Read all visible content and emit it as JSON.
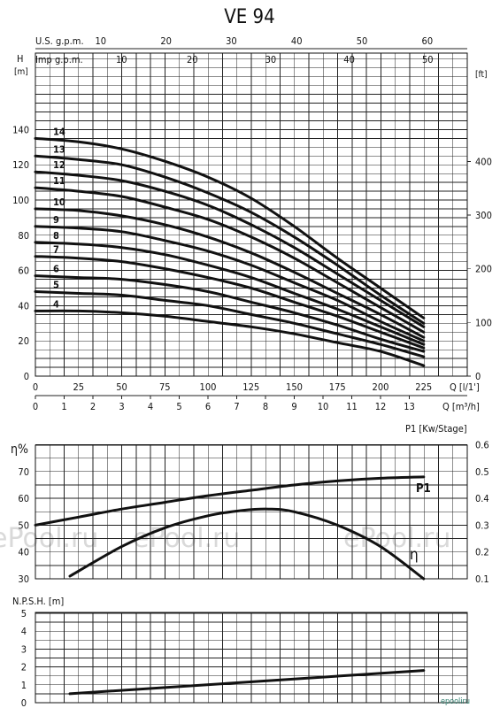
{
  "title": "VE 94",
  "watermark_text": "ePool.ru",
  "site_mark": "epooliru",
  "chart_data": [
    {
      "type": "line",
      "name": "head-curves",
      "ylabel": "H",
      "ylabel_unit": "[m]",
      "right_unit": "[ft]",
      "ylim": [
        0,
        145
      ],
      "xlim": [
        0,
        250
      ],
      "y_ticks": [
        0,
        20,
        40,
        60,
        80,
        100,
        120,
        140
      ],
      "right_ticks": [
        0,
        100,
        200,
        300,
        400
      ],
      "x_axes": [
        {
          "label": "Q [l/1']",
          "ticks": [
            0,
            25,
            50,
            75,
            100,
            125,
            150,
            175,
            200,
            225
          ]
        },
        {
          "label": "Q [m³/h]",
          "ticks": [
            0,
            1,
            2,
            3,
            4,
            5,
            6,
            7,
            8,
            9,
            10,
            11,
            12,
            13
          ]
        }
      ],
      "top_axes": [
        {
          "label": "U.S. g.p.m.",
          "ticks": [
            10,
            20,
            30,
            40,
            50,
            60
          ]
        },
        {
          "label": "Imp g.p.m.",
          "ticks": [
            10,
            20,
            30,
            40,
            50
          ]
        }
      ],
      "grid": true,
      "x": [
        0,
        25,
        50,
        75,
        100,
        125,
        150,
        175,
        200,
        225
      ],
      "series": [
        {
          "name": "14",
          "values": [
            135,
            133,
            129,
            122,
            113,
            101,
            85,
            67,
            50,
            33
          ]
        },
        {
          "name": "13",
          "values": [
            125,
            123,
            120,
            113,
            104,
            93,
            79,
            63,
            46,
            30
          ]
        },
        {
          "name": "12",
          "values": [
            116,
            114,
            111,
            105,
            97,
            86,
            73,
            58,
            43,
            28
          ]
        },
        {
          "name": "11",
          "values": [
            107,
            105,
            102,
            96,
            89,
            79,
            67,
            53,
            39,
            25
          ]
        },
        {
          "name": "10",
          "values": [
            95,
            94,
            91,
            86,
            79,
            70,
            59,
            47,
            35,
            22
          ]
        },
        {
          "name": "9",
          "values": [
            85,
            84,
            82,
            77,
            71,
            63,
            53,
            43,
            31,
            20
          ]
        },
        {
          "name": "8",
          "values": [
            76,
            75,
            73,
            69,
            63,
            56,
            47,
            38,
            28,
            18
          ]
        },
        {
          "name": "7",
          "values": [
            68,
            67,
            65,
            61,
            56,
            50,
            42,
            34,
            25,
            16
          ]
        },
        {
          "name": "6",
          "values": [
            57,
            56,
            55,
            52,
            48,
            42,
            36,
            29,
            21,
            14
          ]
        },
        {
          "name": "5",
          "values": [
            48,
            47,
            46,
            43,
            40,
            35,
            30,
            24,
            18,
            11
          ]
        },
        {
          "name": "4",
          "values": [
            37,
            37,
            36,
            34,
            31,
            28,
            24,
            19,
            14,
            6
          ]
        }
      ]
    },
    {
      "type": "line",
      "name": "efficiency-power",
      "left_label": "η%",
      "right_label": "P1 [Kw/Stage]",
      "left_ticks": [
        30,
        40,
        50,
        60,
        70
      ],
      "left_lim": [
        30,
        80
      ],
      "right_ticks": [
        0.1,
        0.2,
        0.3,
        0.4,
        0.5,
        0.6
      ],
      "right_lim": [
        0.1,
        0.6
      ],
      "grid": true,
      "series": [
        {
          "name": "P1",
          "axis": "right",
          "x": [
            0,
            25,
            50,
            75,
            100,
            125,
            150,
            175,
            200,
            225
          ],
          "values": [
            0.3,
            0.33,
            0.36,
            0.385,
            0.41,
            0.43,
            0.45,
            0.465,
            0.475,
            0.48
          ]
        },
        {
          "name": "η",
          "axis": "left",
          "x": [
            20,
            50,
            75,
            100,
            120,
            135,
            150,
            175,
            200,
            225
          ],
          "values": [
            31,
            42,
            49,
            53.5,
            55.5,
            56,
            55,
            50,
            42,
            30
          ]
        }
      ]
    },
    {
      "type": "line",
      "name": "npsh",
      "ylabel": "N.P.S.H. [m]",
      "y_ticks": [
        0,
        1,
        2,
        3,
        4,
        5
      ],
      "ylim": [
        0,
        5
      ],
      "grid": true,
      "series": [
        {
          "name": "NPSH",
          "x": [
            20,
            225
          ],
          "values": [
            0.5,
            1.8
          ]
        }
      ]
    }
  ]
}
